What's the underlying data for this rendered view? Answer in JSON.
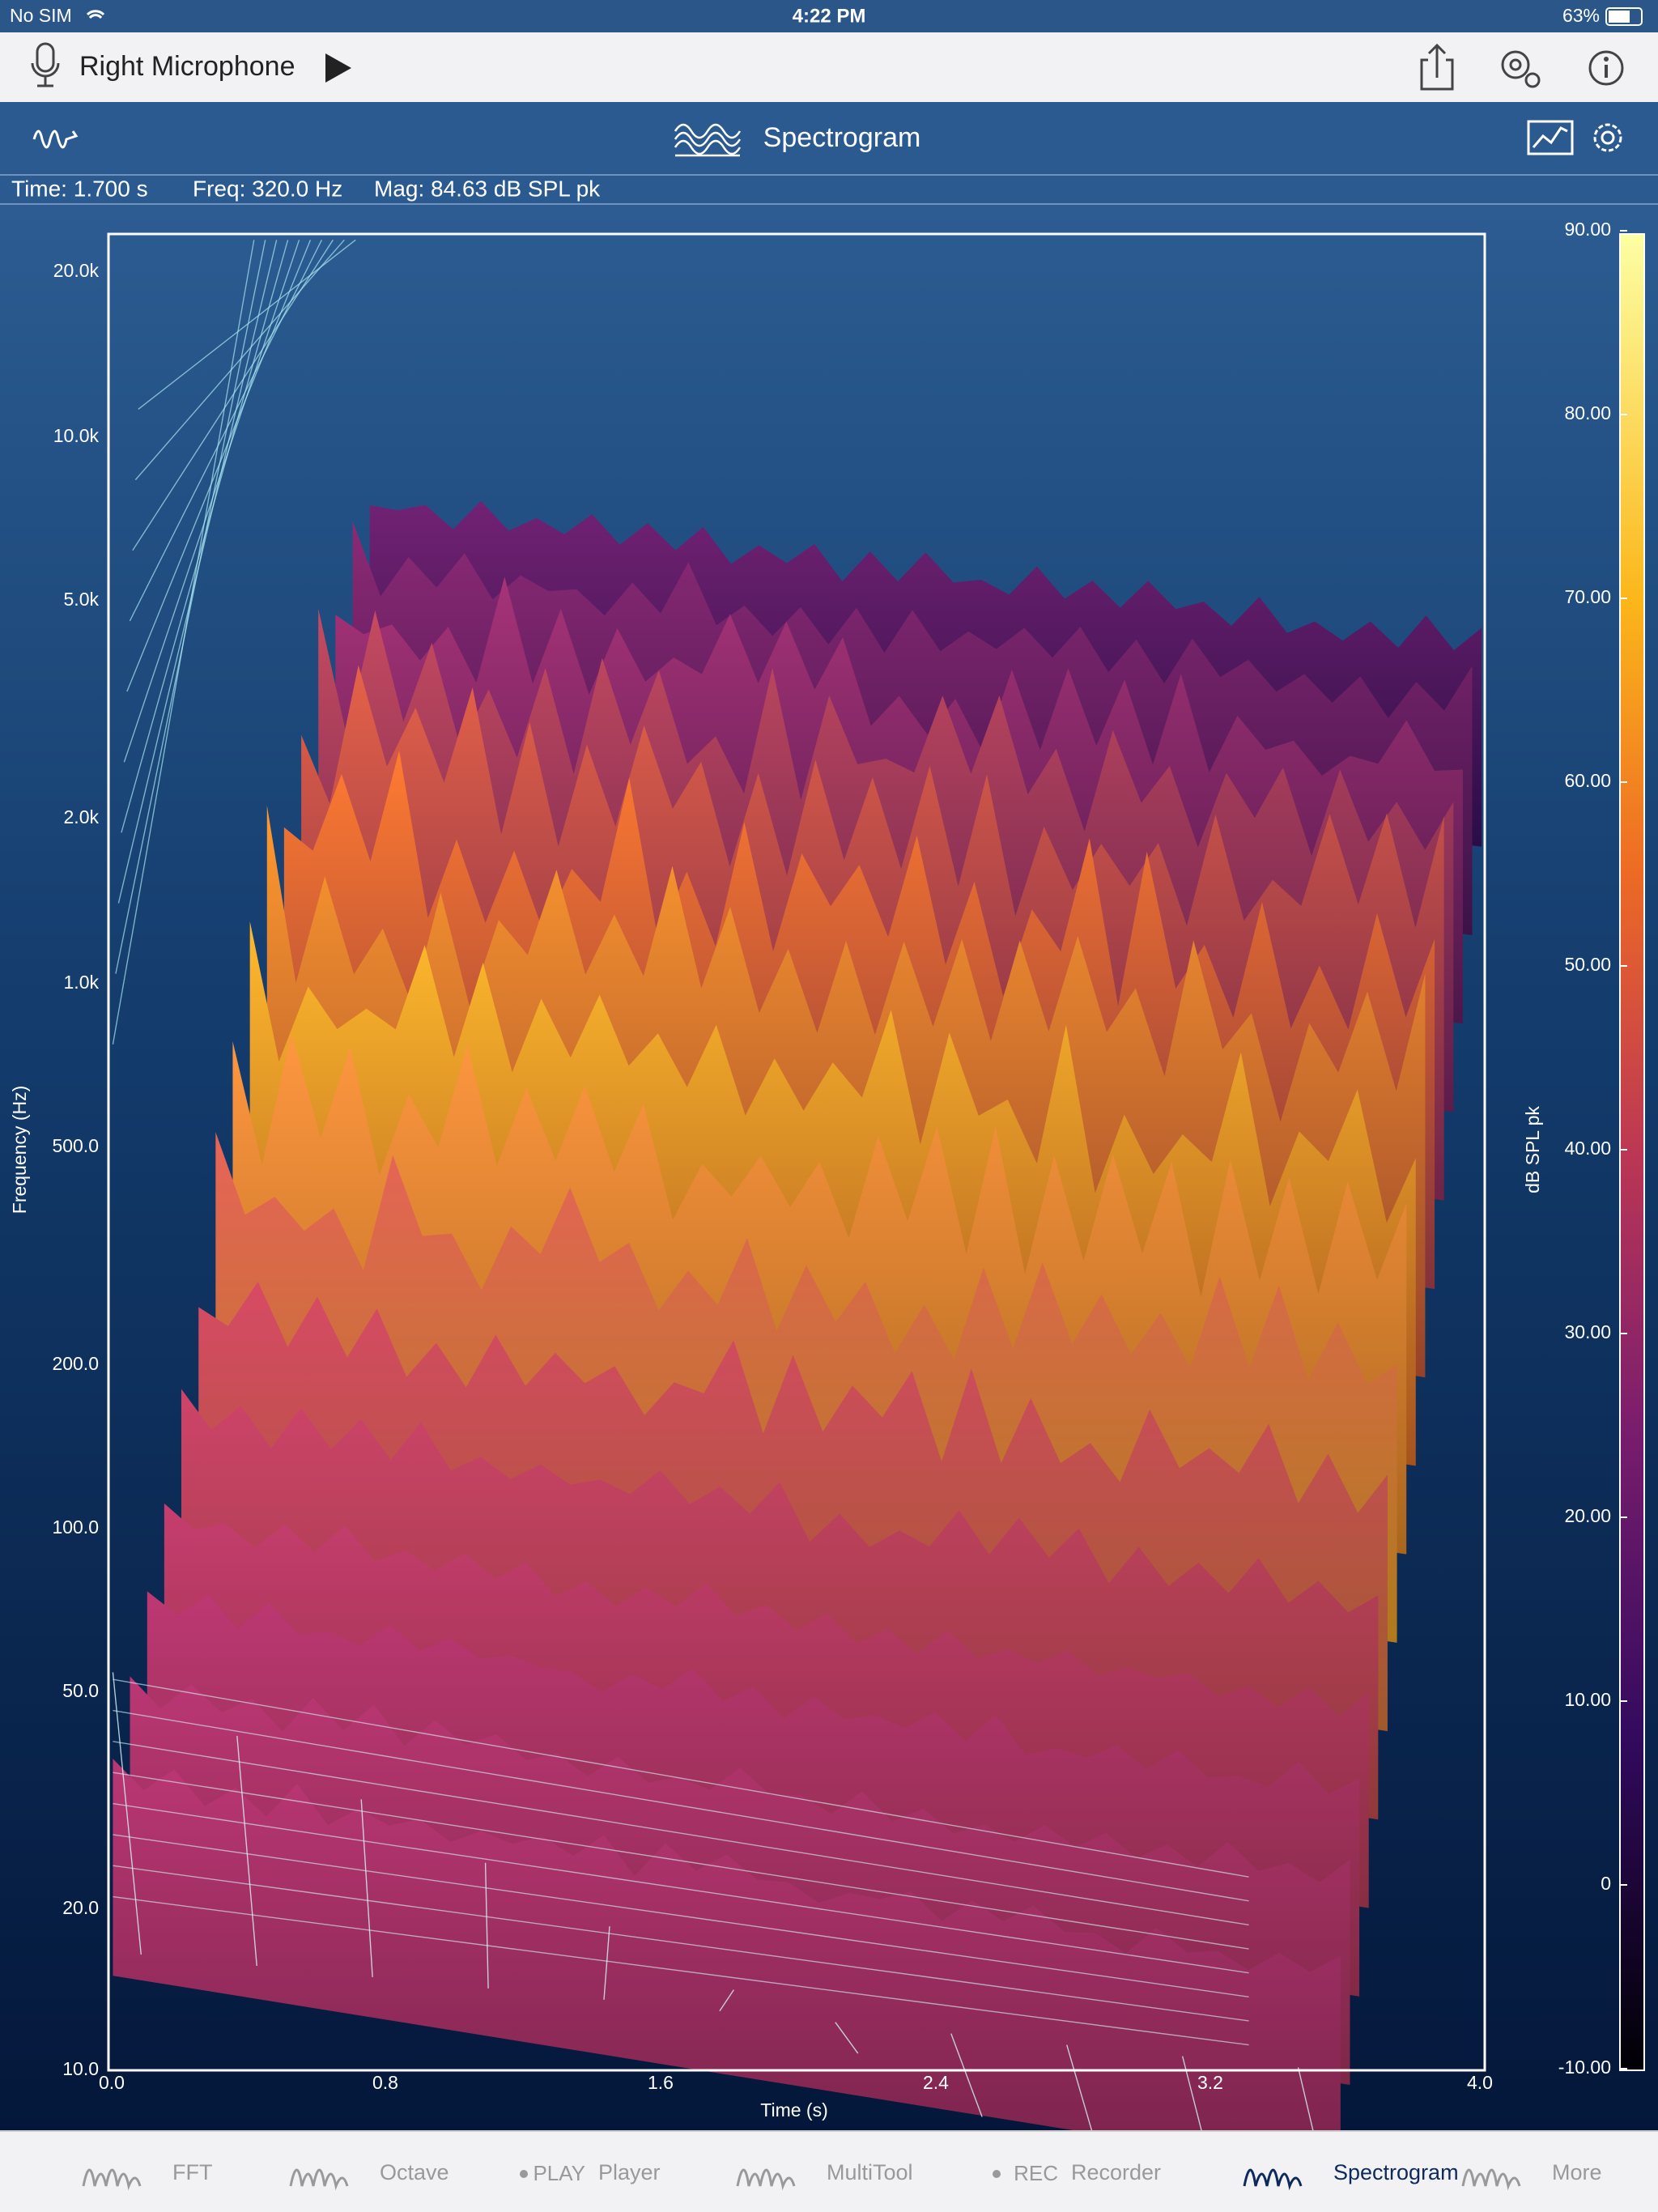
{
  "status_bar": {
    "carrier": "No SIM",
    "time": "4:22 PM",
    "battery": "63%"
  },
  "toolbar": {
    "title": "Right Microphone"
  },
  "header": {
    "title": "Spectrogram"
  },
  "readout": {
    "time": "Time: 1.700 s",
    "freq": "Freq: 320.0 Hz",
    "mag": "Mag: 84.63 dB SPL pk"
  },
  "plot": {
    "y_axis_label": "Frequency (Hz)",
    "x_axis_label": "Time (s)",
    "y_ticks": [
      "20.0k",
      "10.0k",
      "5.0k",
      "2.0k",
      "1.0k",
      "500.0",
      "200.0",
      "100.0",
      "50.0",
      "20.0",
      "10.0"
    ],
    "x_ticks": [
      "0.0",
      "0.8",
      "1.6",
      "2.4",
      "3.2",
      "4.0"
    ],
    "colorbar_label": "dB SPL pk",
    "colorbar_ticks": [
      "90.00",
      "80.00",
      "70.00",
      "60.00",
      "50.00",
      "40.00",
      "30.00",
      "20.00",
      "10.00",
      "0",
      "-10.00"
    ]
  },
  "tab_bar": {
    "tabs": [
      {
        "label": "FFT"
      },
      {
        "label": "Octave"
      },
      {
        "label": "Player",
        "icon_text": "PLAY"
      },
      {
        "label": "MultiTool"
      },
      {
        "label": "Recorder",
        "icon_text": "REC"
      },
      {
        "label": "Spectrogram"
      },
      {
        "label": "More"
      }
    ]
  }
}
